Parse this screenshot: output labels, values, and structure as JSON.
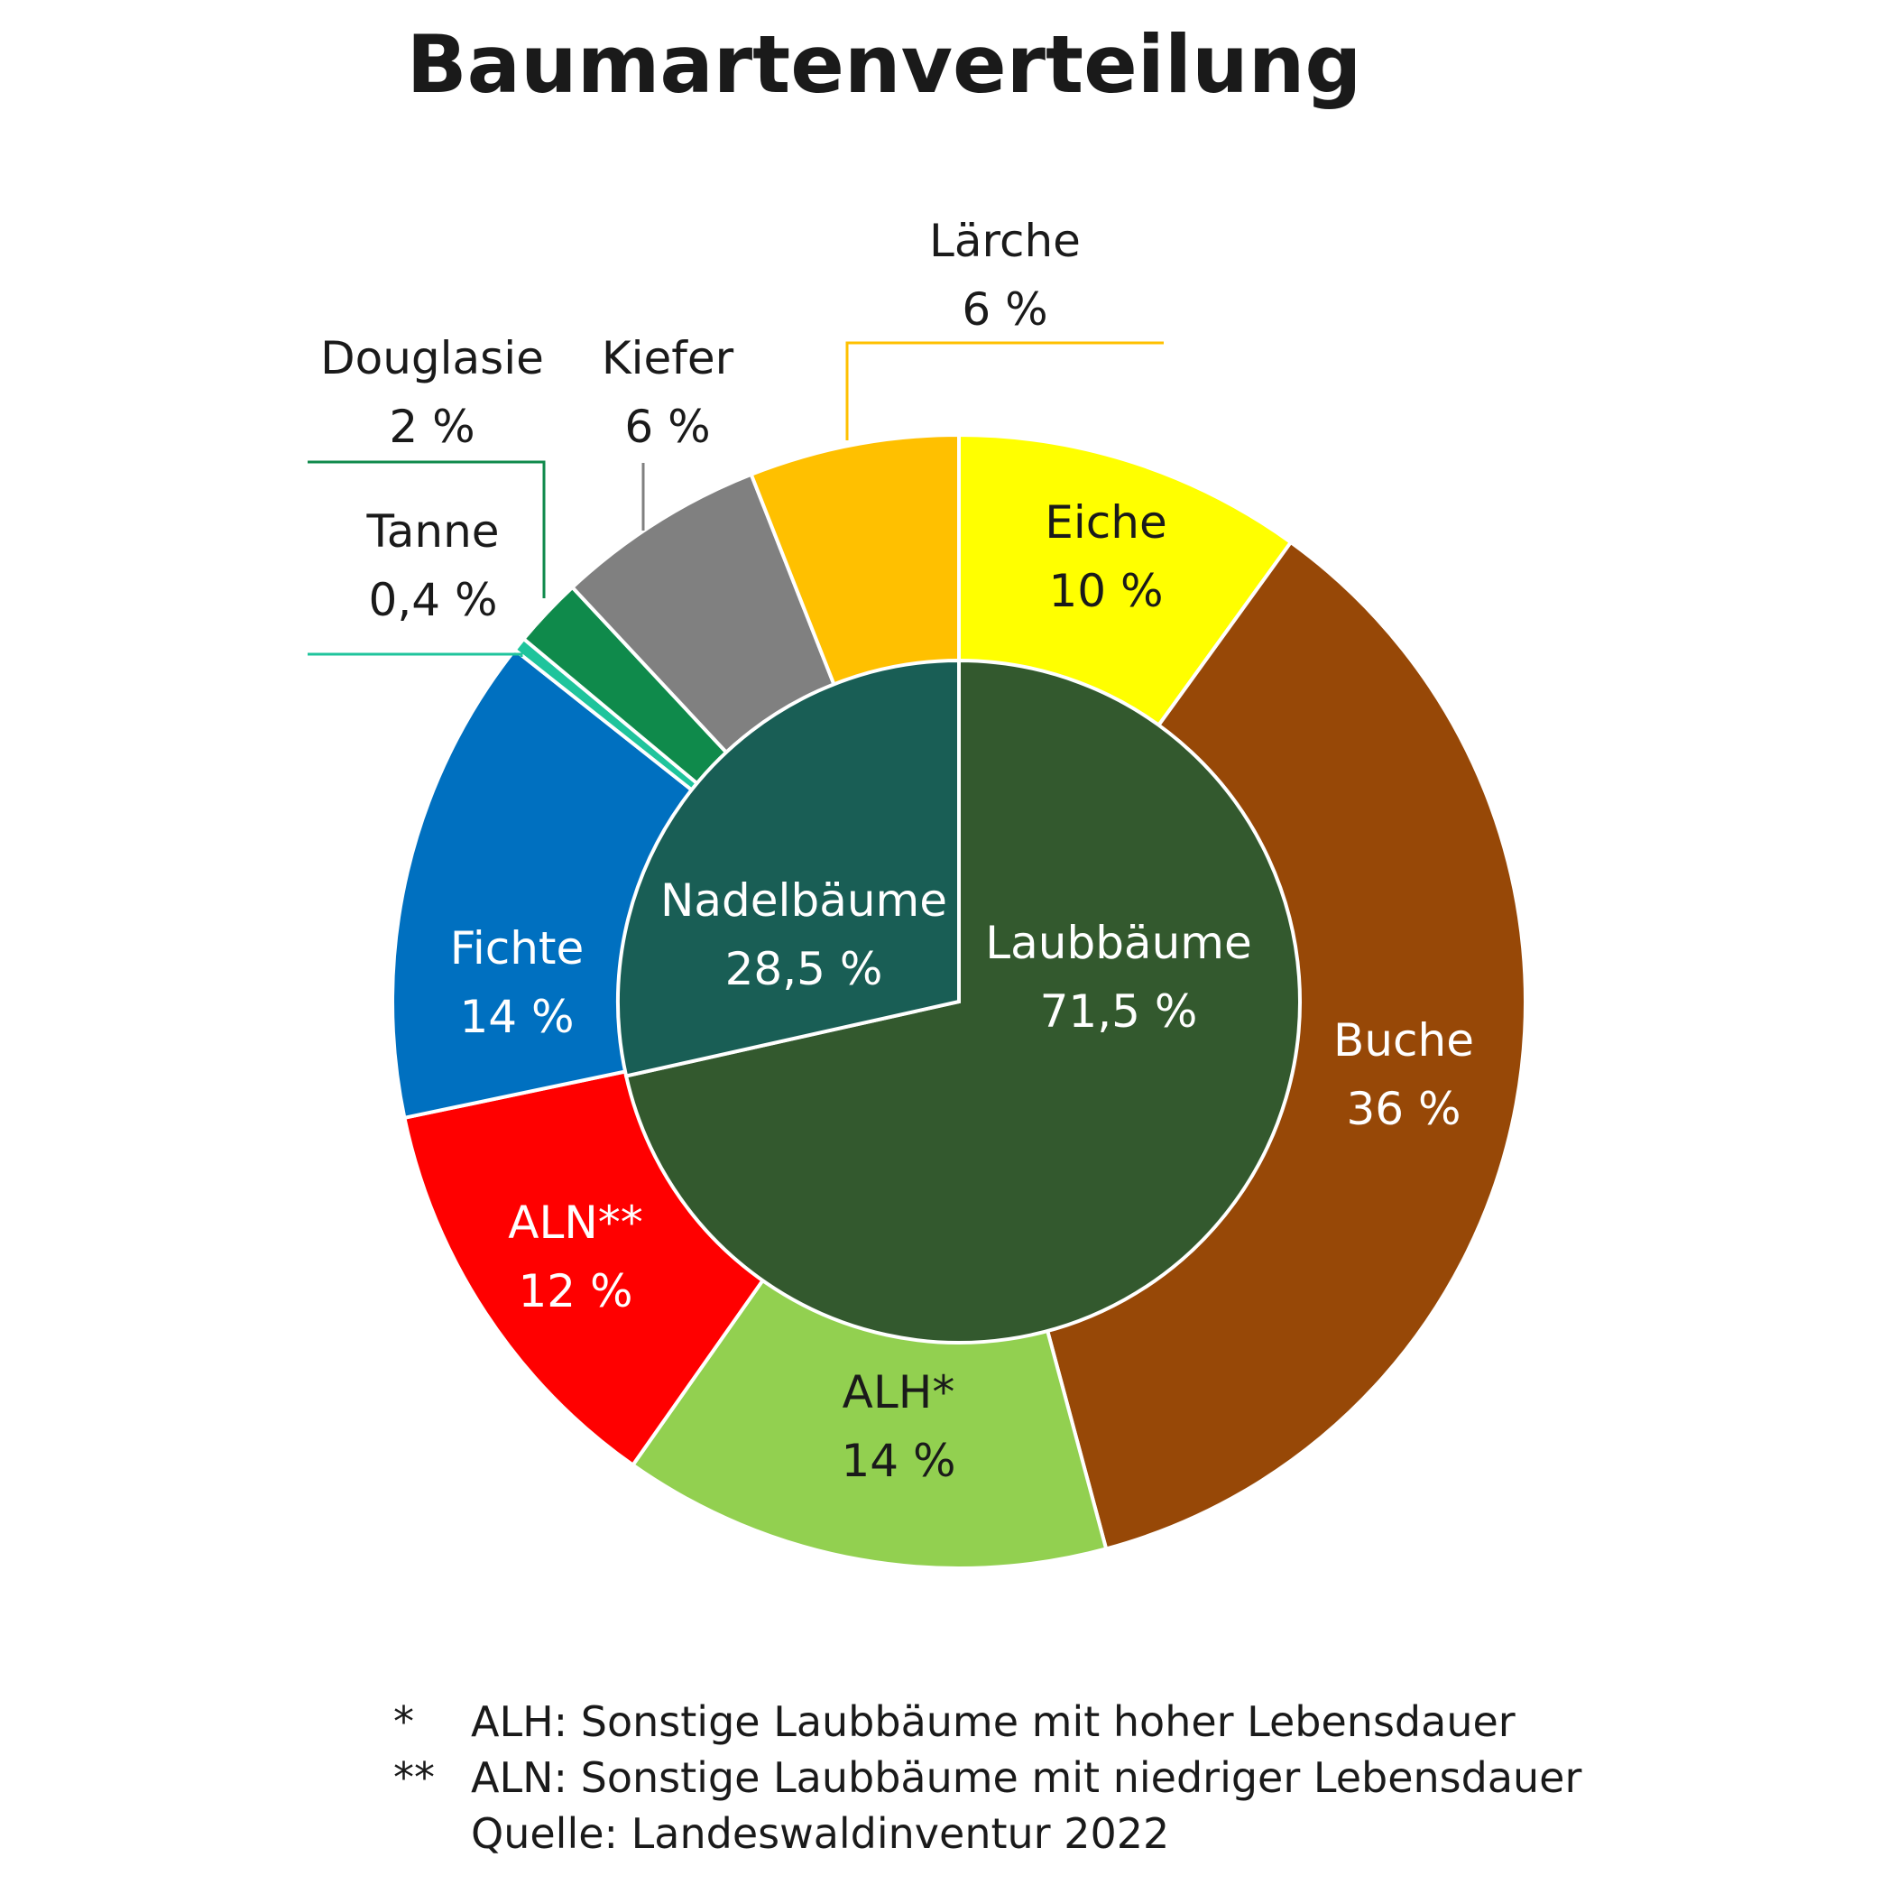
{
  "chart_data": {
    "type": "pie",
    "title": "Baumartenverteilung",
    "inner_ring": [
      {
        "name": "Laubbäume",
        "label": "71,5 %",
        "value": 71.5,
        "color": "#33592e",
        "text_color": "#ffffff"
      },
      {
        "name": "Nadelbäume",
        "label": "28,5 %",
        "value": 28.5,
        "color": "#195e55",
        "text_color": "#ffffff"
      }
    ],
    "outer_ring": [
      {
        "name": "Eiche",
        "label": "10 %",
        "value": 10,
        "color": "#ffff00",
        "text_color": "#1a1a1a",
        "callout": false
      },
      {
        "name": "Buche",
        "label": "36 %",
        "value": 36,
        "color": "#974807",
        "text_color": "#ffffff",
        "callout": false
      },
      {
        "name": "ALH*",
        "label": "14 %",
        "value": 14,
        "color": "#92d050",
        "text_color": "#1a1a1a",
        "callout": false
      },
      {
        "name": "ALN**",
        "label": "12 %",
        "value": 12,
        "color": "#ff0000",
        "text_color": "#ffffff",
        "callout": false
      },
      {
        "name": "Fichte",
        "label": "14 %",
        "value": 14,
        "color": "#0070c0",
        "text_color": "#ffffff",
        "callout": false
      },
      {
        "name": "Tanne",
        "label": "0,4 %",
        "value": 0.4,
        "color": "#1fc49c",
        "text_color": "#1a1a1a",
        "callout": true
      },
      {
        "name": "Douglasie",
        "label": "2 %",
        "value": 2,
        "color": "#0f8a4b",
        "text_color": "#1a1a1a",
        "callout": true
      },
      {
        "name": "Kiefer",
        "label": "6 %",
        "value": 6,
        "color": "#808080",
        "text_color": "#1a1a1a",
        "callout": true
      },
      {
        "name": "Lärche",
        "label": "6 %",
        "value": 6,
        "color": "#ffc000",
        "text_color": "#1a1a1a",
        "callout": true
      }
    ],
    "footnotes": [
      {
        "marker": "*",
        "text": "ALH: Sonstige Laubbäume mit hoher Lebensdauer"
      },
      {
        "marker": "**",
        "text": "ALN: Sonstige Laubbäume mit niedriger Lebensdauer"
      },
      {
        "marker": "",
        "text": "Quelle: Landeswaldinventur 2022"
      }
    ]
  }
}
